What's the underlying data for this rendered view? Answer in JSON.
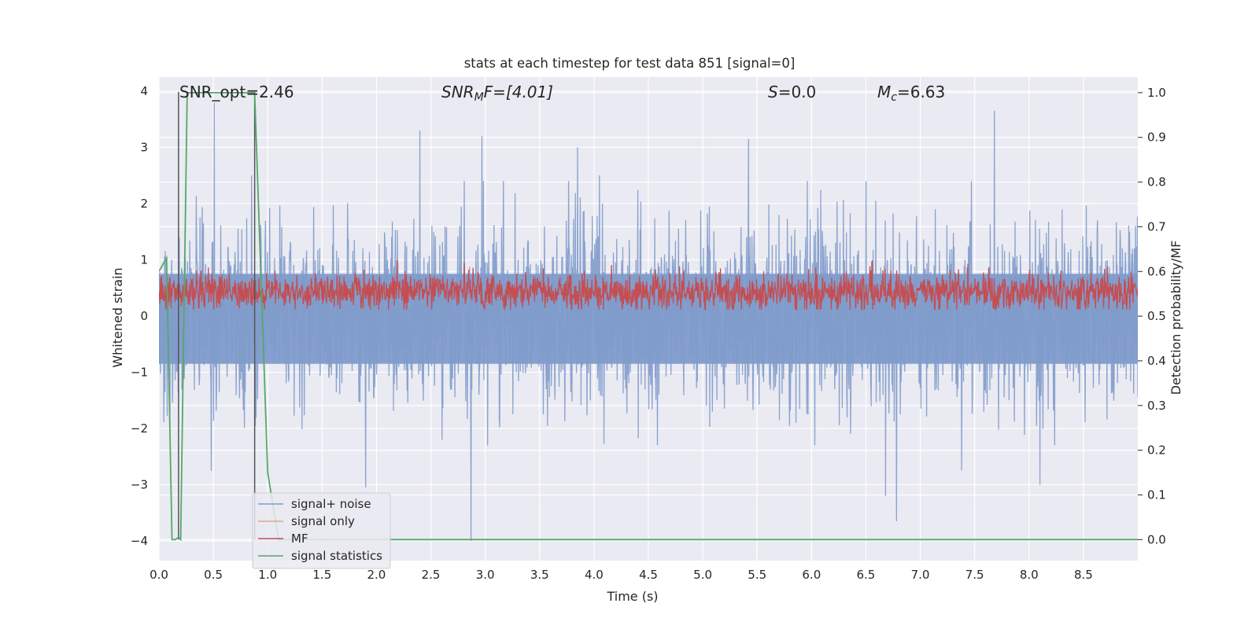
{
  "chart_data": {
    "type": "line",
    "title": "stats at each timestep for test data 851 [signal=0]",
    "xlabel": "Time (s)",
    "ylabel": "Whitened strain",
    "y2label": "Detection probability/MF",
    "xlim": [
      0.0,
      9.0
    ],
    "ylim": [
      -4.35,
      4.25
    ],
    "y2lim": [
      -0.047,
      1.035
    ],
    "xticks": [
      "0.0",
      "0.5",
      "1.0",
      "1.5",
      "2.0",
      "2.5",
      "3.0",
      "3.5",
      "4.0",
      "4.5",
      "5.0",
      "5.5",
      "6.0",
      "6.5",
      "7.0",
      "7.5",
      "8.0",
      "8.5"
    ],
    "yticks": [
      "4",
      "3",
      "2",
      "1",
      "0",
      "−1",
      "−2",
      "−3",
      "−4"
    ],
    "y2ticks": [
      "1.0",
      "0.9",
      "0.8",
      "0.7",
      "0.6",
      "0.5",
      "0.4",
      "0.3",
      "0.2",
      "0.1",
      "0.0"
    ],
    "grid": true,
    "legend_position": "lower-left",
    "annotations": {
      "snr_opt": "SNR_opt=2.46",
      "snr_mf_base": "SNR",
      "snr_mf_sub": "M",
      "snr_mf_rest": "F=[4.01]",
      "s_label": "S",
      "s_value": "=0.0",
      "mc_base": "M",
      "mc_sub": "c",
      "mc_value": "=6.63"
    },
    "series": [
      {
        "name": "signal+ noise",
        "axis": "left",
        "color": "#7f9bcb",
        "description": "noisy whitened strain, amplitude envelope roughly between -2.5 and 2.5 with spikes up to 3.8 and down to -4",
        "x_range": [
          0.0,
          9.0
        ],
        "upper_envelope": 2.4,
        "lower_envelope": -2.3,
        "peaks": [
          [
            0.51,
            3.8
          ],
          [
            2.4,
            3.3
          ],
          [
            2.97,
            3.2
          ],
          [
            3.85,
            3.0
          ],
          [
            5.42,
            3.15
          ],
          [
            7.68,
            3.65
          ],
          [
            0.85,
            2.5
          ],
          [
            4.05,
            2.5
          ],
          [
            6.5,
            2.4
          ]
        ],
        "troughs": [
          [
            2.87,
            -4.0
          ],
          [
            6.78,
            -3.65
          ],
          [
            6.68,
            -3.2
          ],
          [
            1.9,
            -3.05
          ],
          [
            8.1,
            -3.0
          ],
          [
            7.38,
            -2.75
          ],
          [
            0.48,
            -2.75
          ]
        ]
      },
      {
        "name": "signal only",
        "axis": "left",
        "color": "#e8a582",
        "values": []
      },
      {
        "name": "MF",
        "axis": "right",
        "color": "#c44e52",
        "description": "matched filter output oscillating between about 0.52 and 0.62",
        "mean": 0.555,
        "spread": 0.035,
        "max": 0.625
      },
      {
        "name": "signal statistics",
        "axis": "right",
        "color": "#55a868",
        "x": [
          0.0,
          0.07,
          0.12,
          0.15,
          0.18,
          0.2,
          0.26,
          0.3,
          0.88,
          1.0,
          1.1,
          1.5,
          9.0
        ],
        "values": [
          0.6,
          0.63,
          0.0,
          0.0,
          0.005,
          0.0,
          1.0,
          1.0,
          1.0,
          0.15,
          0.0,
          0.0,
          0.0
        ]
      }
    ],
    "vertical_lines": [
      0.18,
      0.88
    ]
  }
}
